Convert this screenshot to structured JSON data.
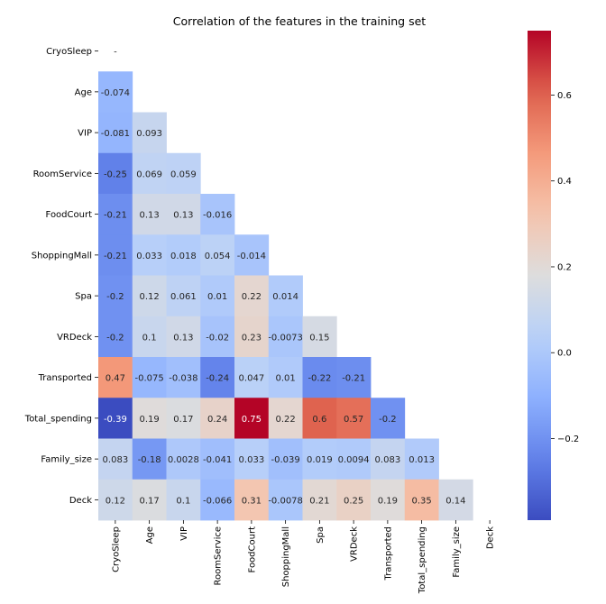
{
  "chart_data": {
    "type": "heatmap",
    "title": "Correlation of the features in the training set",
    "labels": [
      "CryoSleep",
      "Age",
      "VIP",
      "RoomService",
      "FoodCourt",
      "ShoppingMall",
      "Spa",
      "VRDeck",
      "Transported",
      "Total_spending",
      "Family_size",
      "Deck"
    ],
    "mask": "upper-triangle-including-diagonal",
    "matrix": [
      [
        null
      ],
      [
        -0.074
      ],
      [
        -0.081,
        0.093
      ],
      [
        -0.25,
        0.069,
        0.059
      ],
      [
        -0.21,
        0.13,
        0.13,
        -0.016
      ],
      [
        -0.21,
        0.033,
        0.018,
        0.054,
        -0.014
      ],
      [
        -0.2,
        0.12,
        0.061,
        0.01,
        0.22,
        0.014
      ],
      [
        -0.2,
        0.1,
        0.13,
        -0.02,
        0.23,
        -0.0073,
        0.15
      ],
      [
        0.47,
        -0.075,
        -0.038,
        -0.24,
        0.047,
        0.01,
        -0.22,
        -0.21
      ],
      [
        -0.39,
        0.19,
        0.17,
        0.24,
        0.75,
        0.22,
        0.6,
        0.57,
        -0.2
      ],
      [
        0.083,
        -0.18,
        0.0028,
        -0.041,
        0.033,
        -0.039,
        0.019,
        0.0094,
        0.083,
        0.013
      ],
      [
        0.12,
        0.17,
        0.1,
        -0.066,
        0.31,
        -0.0078,
        0.21,
        0.25,
        0.19,
        0.35,
        0.14
      ]
    ],
    "value_labels": [
      [
        "-"
      ],
      [
        "-0.074"
      ],
      [
        "-0.081",
        "0.093"
      ],
      [
        "-0.25",
        "0.069",
        "0.059"
      ],
      [
        "-0.21",
        "0.13",
        "0.13",
        "-0.016"
      ],
      [
        "-0.21",
        "0.033",
        "0.018",
        "0.054",
        "-0.014"
      ],
      [
        "-0.2",
        "0.12",
        "0.061",
        "0.01",
        "0.22",
        "0.014"
      ],
      [
        "-0.2",
        "0.1",
        "0.13",
        "-0.02",
        "0.23",
        "-0.0073",
        "0.15"
      ],
      [
        "0.47",
        "-0.075",
        "-0.038",
        "-0.24",
        "0.047",
        "0.01",
        "-0.22",
        "-0.21"
      ],
      [
        "-0.39",
        "0.19",
        "0.17",
        "0.24",
        "0.75",
        "0.22",
        "0.6",
        "0.57",
        "-0.2"
      ],
      [
        "0.083",
        "-0.18",
        "0.0028",
        "-0.041",
        "0.033",
        "-0.039",
        "0.019",
        "0.0094",
        "0.083",
        "0.013"
      ],
      [
        "0.12",
        "0.17",
        "0.1",
        "-0.066",
        "0.31",
        "-0.0078",
        "0.21",
        "0.25",
        "0.19",
        "0.35",
        "0.14"
      ]
    ],
    "colormap": "coolwarm",
    "vmin": -0.39,
    "vmax": 0.75,
    "colorbar_ticks": [
      -0.2,
      0.0,
      0.2,
      0.4,
      0.6
    ],
    "colorbar_tick_labels": [
      "−0.2",
      "0.0",
      "0.2",
      "0.4",
      "0.6"
    ]
  }
}
